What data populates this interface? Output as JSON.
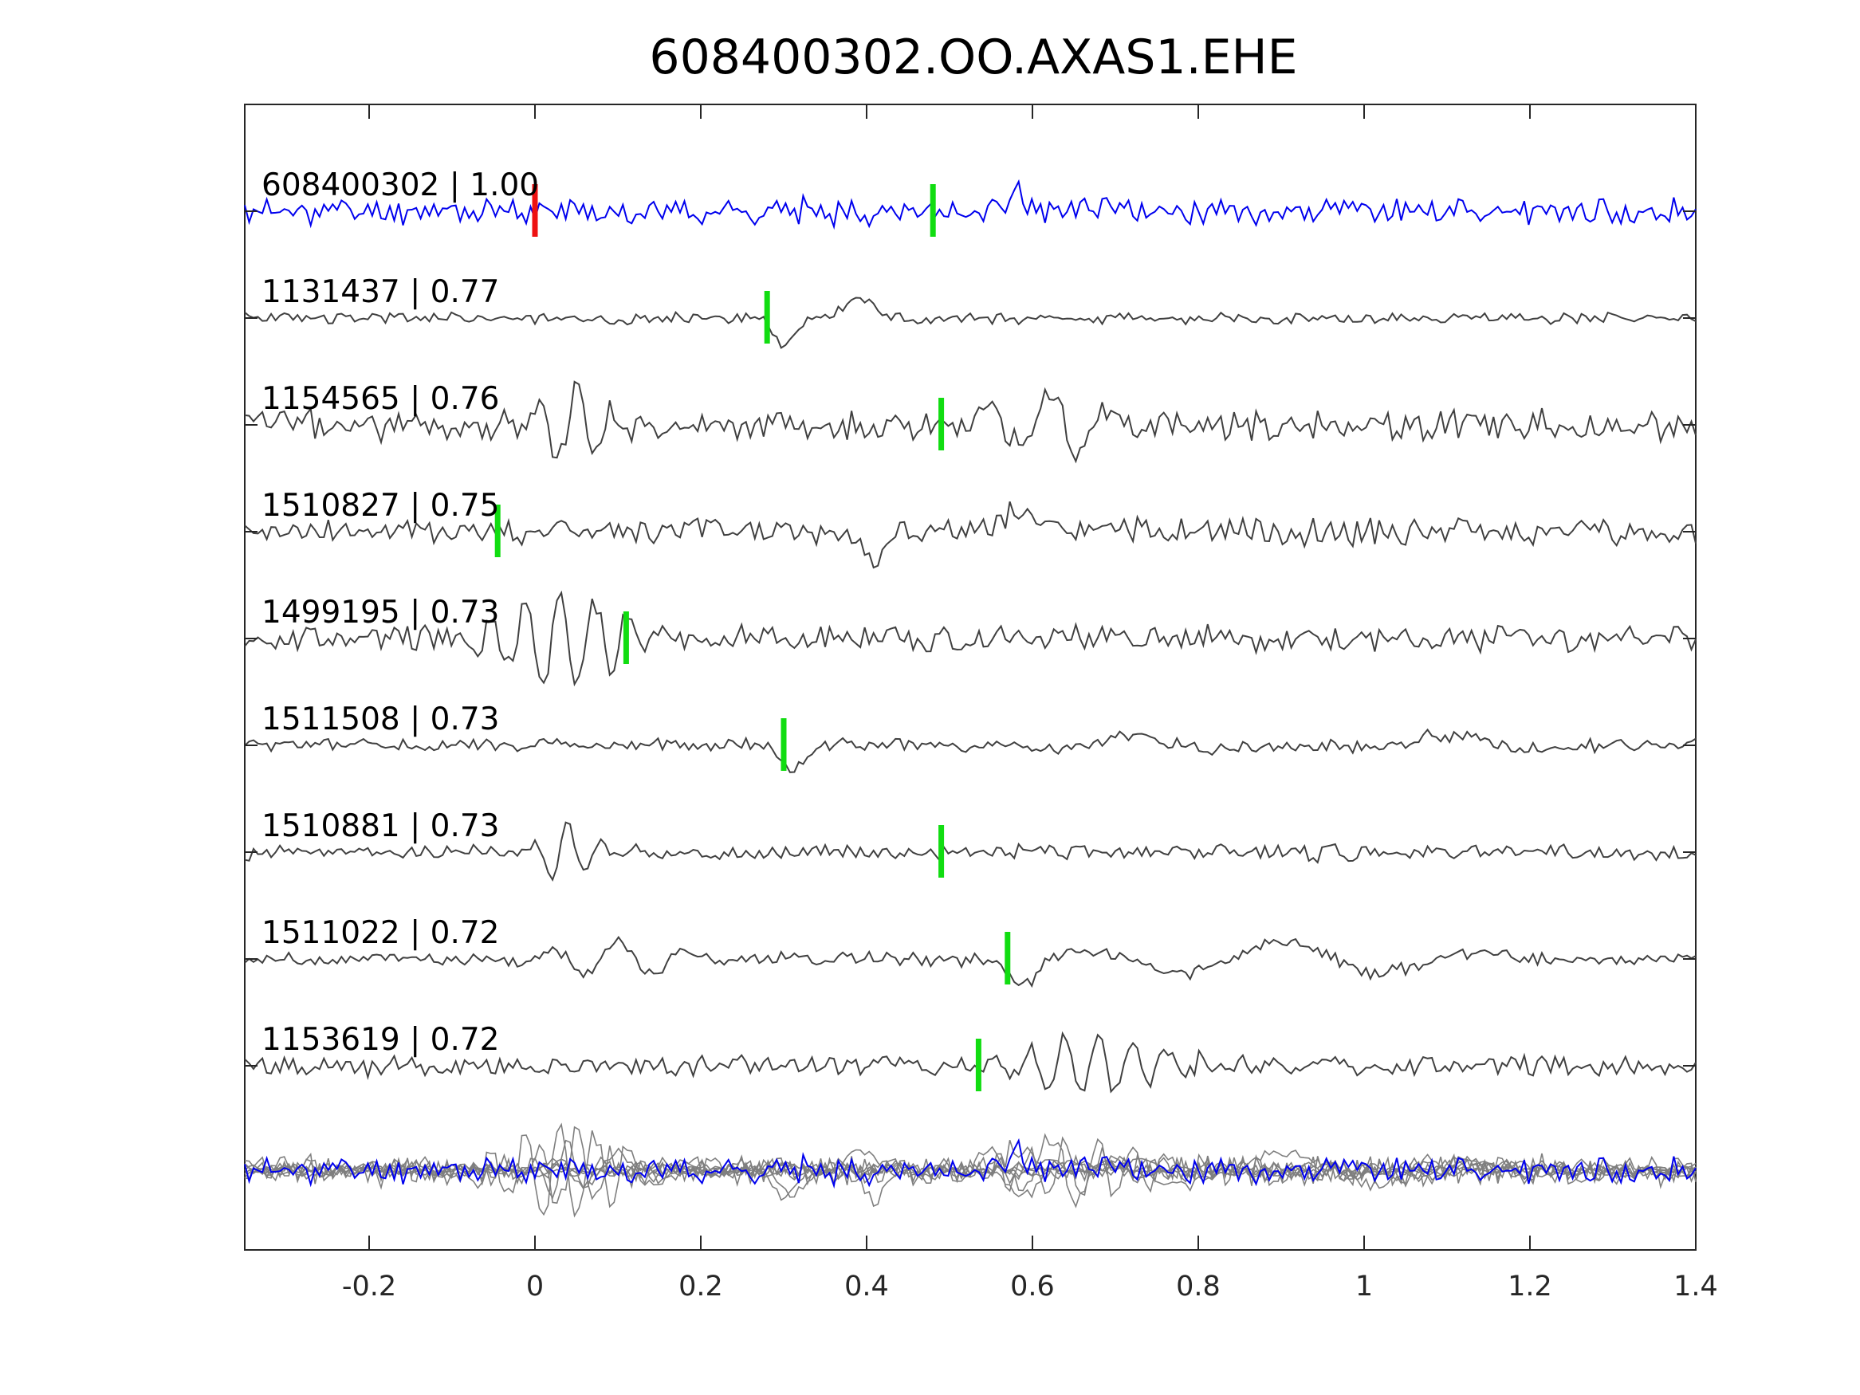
{
  "chart_data": {
    "type": "line",
    "title": "608400302.OO.AXAS1.EHE",
    "xlabel": "",
    "ylabel": "",
    "xlim": [
      -0.35,
      1.4
    ],
    "xticks": [
      -0.2,
      0,
      0.2,
      0.4,
      0.6,
      0.8,
      1,
      1.2,
      1.4
    ],
    "xtick_labels": [
      "-0.2",
      "0",
      "0.2",
      "0.4",
      "0.6",
      "0.8",
      "1",
      "1.2",
      "1.4"
    ],
    "grid": false,
    "colors": {
      "reference_trace": "#0000ee",
      "other_traces": "#404040",
      "stack_traces": "#7f7f7f",
      "reference_pick": "#ee1111",
      "picks": "#11dd11"
    },
    "series": [
      {
        "event_id": "608400302",
        "label": "608400302 | 1.00",
        "correlation": 1.0,
        "reference_pick_time": 0.0,
        "pick_time": 0.48,
        "seed": 11,
        "scale": 1.0,
        "features": [
          {
            "t": 0.58,
            "a": 2.2,
            "w": 0.012,
            "f": 12
          }
        ]
      },
      {
        "event_id": "1131437",
        "label": "1131437 | 0.77",
        "correlation": 0.77,
        "pick_time": 0.28,
        "seed": 23,
        "scale": 0.45,
        "features": [
          {
            "t": 0.3,
            "a": -4.5,
            "w": 0.02,
            "f": 5
          },
          {
            "t": 0.39,
            "a": 3.5,
            "w": 0.03,
            "f": 6
          }
        ]
      },
      {
        "event_id": "1154565",
        "label": "1154565 | 0.76",
        "correlation": 0.76,
        "pick_time": 0.49,
        "seed": 37,
        "scale": 1.2,
        "features": [
          {
            "t": 0.05,
            "a": 2.0,
            "w": 0.06,
            "f": 22
          },
          {
            "t": 0.62,
            "a": 2.0,
            "w": 0.08,
            "f": 14
          }
        ]
      },
      {
        "event_id": "1510827",
        "label": "1510827 | 0.75",
        "correlation": 0.75,
        "pick_time": -0.045,
        "seed": 41,
        "scale": 1.0,
        "features": [
          {
            "t": 0.41,
            "a": -2.2,
            "w": 0.02,
            "f": 6
          },
          {
            "t": 0.58,
            "a": 1.5,
            "w": 0.03,
            "f": 6
          }
        ]
      },
      {
        "event_id": "1499195",
        "label": "1499195 | 0.73",
        "correlation": 0.73,
        "pick_time": 0.11,
        "seed": 53,
        "scale": 1.0,
        "features": [
          {
            "t": 0.03,
            "a": 3.5,
            "w": 0.09,
            "f": 24
          }
        ]
      },
      {
        "event_id": "1511508",
        "label": "1511508 | 0.73",
        "correlation": 0.73,
        "pick_time": 0.3,
        "seed": 61,
        "scale": 0.5,
        "features": [
          {
            "t": 0.31,
            "a": -3.5,
            "w": 0.02,
            "f": 5
          },
          {
            "t": 0.72,
            "a": 1.5,
            "w": 0.1,
            "f": 4
          },
          {
            "t": 1.1,
            "a": 1.5,
            "w": 0.1,
            "f": 4
          }
        ]
      },
      {
        "event_id": "1510881",
        "label": "1510881 | 0.73",
        "correlation": 0.73,
        "pick_time": 0.49,
        "seed": 71,
        "scale": 0.55,
        "features": [
          {
            "t": 0.04,
            "a": 4.0,
            "w": 0.035,
            "f": 24
          },
          {
            "t": 0.96,
            "a": 2.0,
            "w": 0.03,
            "f": 24
          }
        ]
      },
      {
        "event_id": "1511022",
        "label": "1511022 | 0.72",
        "correlation": 0.72,
        "pick_time": 0.57,
        "seed": 83,
        "scale": 0.5,
        "features": [
          {
            "t": 0.1,
            "a": 2.5,
            "w": 0.1,
            "f": 12
          },
          {
            "t": 0.59,
            "a": -4.0,
            "w": 0.025,
            "f": 4
          },
          {
            "t": 0.9,
            "a": 2.5,
            "w": 0.25,
            "f": 4
          }
        ]
      },
      {
        "event_id": "1153619",
        "label": "1153619 | 0.72",
        "correlation": 0.72,
        "pick_time": 0.535,
        "seed": 97,
        "scale": 0.8,
        "features": [
          {
            "t": 0.68,
            "a": 2.5,
            "w": 0.12,
            "f": 24
          }
        ]
      }
    ]
  }
}
